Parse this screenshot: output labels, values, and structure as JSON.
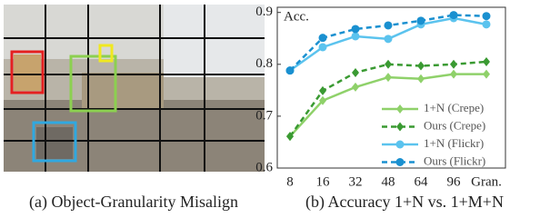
{
  "image": {
    "caption": "(a) Object-Granularity Misalign"
  },
  "chart_data": {
    "type": "line",
    "title": "(b) Accuracy 1+N vs. 1+M+N",
    "ylabel": "Acc.",
    "categories": [
      "8",
      "16",
      "32",
      "48",
      "64",
      "96",
      "Gran."
    ],
    "series": [
      {
        "name": "1+N (Crepe)",
        "color": "#8fd16a",
        "dashed": false,
        "marker": "diamond",
        "values": [
          0.661,
          0.73,
          0.756,
          0.775,
          0.772,
          0.781,
          0.781
        ]
      },
      {
        "name": "Ours (Crepe)",
        "color": "#3a9a32",
        "dashed": true,
        "marker": "diamond",
        "values": [
          0.661,
          0.749,
          0.784,
          0.8,
          0.797,
          0.8,
          0.805
        ]
      },
      {
        "name": "1+N (Flickr)",
        "color": "#5bc3ee",
        "dashed": false,
        "marker": "circle",
        "values": [
          0.788,
          0.833,
          0.854,
          0.849,
          0.877,
          0.889,
          0.877
        ]
      },
      {
        "name": "Ours (Flickr)",
        "color": "#1a90d0",
        "dashed": true,
        "marker": "circle",
        "values": [
          0.788,
          0.851,
          0.868,
          0.875,
          0.884,
          0.895,
          0.893
        ]
      }
    ],
    "ylim": [
      0.6,
      0.91
    ],
    "yticks": [
      0.6,
      0.7,
      0.8,
      0.9
    ],
    "legend": "lower right",
    "grid": false
  }
}
